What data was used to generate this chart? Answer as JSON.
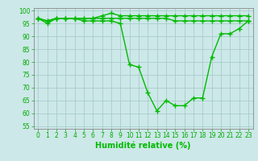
{
  "line1": [
    97,
    96,
    97,
    97,
    97,
    97,
    97,
    98,
    99,
    98,
    98,
    98,
    98,
    98,
    98,
    98,
    98,
    98,
    98,
    98,
    98,
    98,
    98,
    98
  ],
  "line2": [
    97,
    96,
    97,
    97,
    97,
    97,
    97,
    97,
    97,
    97,
    97,
    97,
    97,
    97,
    97,
    96,
    96,
    96,
    96,
    96,
    96,
    96,
    96,
    96
  ],
  "line3": [
    97,
    95,
    97,
    97,
    97,
    96,
    96,
    96,
    96,
    95,
    79,
    78,
    68,
    61,
    65,
    63,
    63,
    66,
    66,
    82,
    91,
    91,
    93,
    96
  ],
  "line_color": "#00bb00",
  "bg_color": "#cce8e8",
  "grid_color": "#aacccc",
  "axis_color": "#888888",
  "xlabel": "Humidité relative (%)",
  "xlim": [
    -0.5,
    23.5
  ],
  "ylim": [
    54,
    101
  ],
  "yticks": [
    55,
    60,
    65,
    70,
    75,
    80,
    85,
    90,
    95,
    100
  ],
  "xticks": [
    0,
    1,
    2,
    3,
    4,
    5,
    6,
    7,
    8,
    9,
    10,
    11,
    12,
    13,
    14,
    15,
    16,
    17,
    18,
    19,
    20,
    21,
    22,
    23
  ],
  "marker": "+",
  "markersize": 4,
  "linewidth": 1.0,
  "xlabel_fontsize": 7,
  "tick_fontsize": 5.5
}
